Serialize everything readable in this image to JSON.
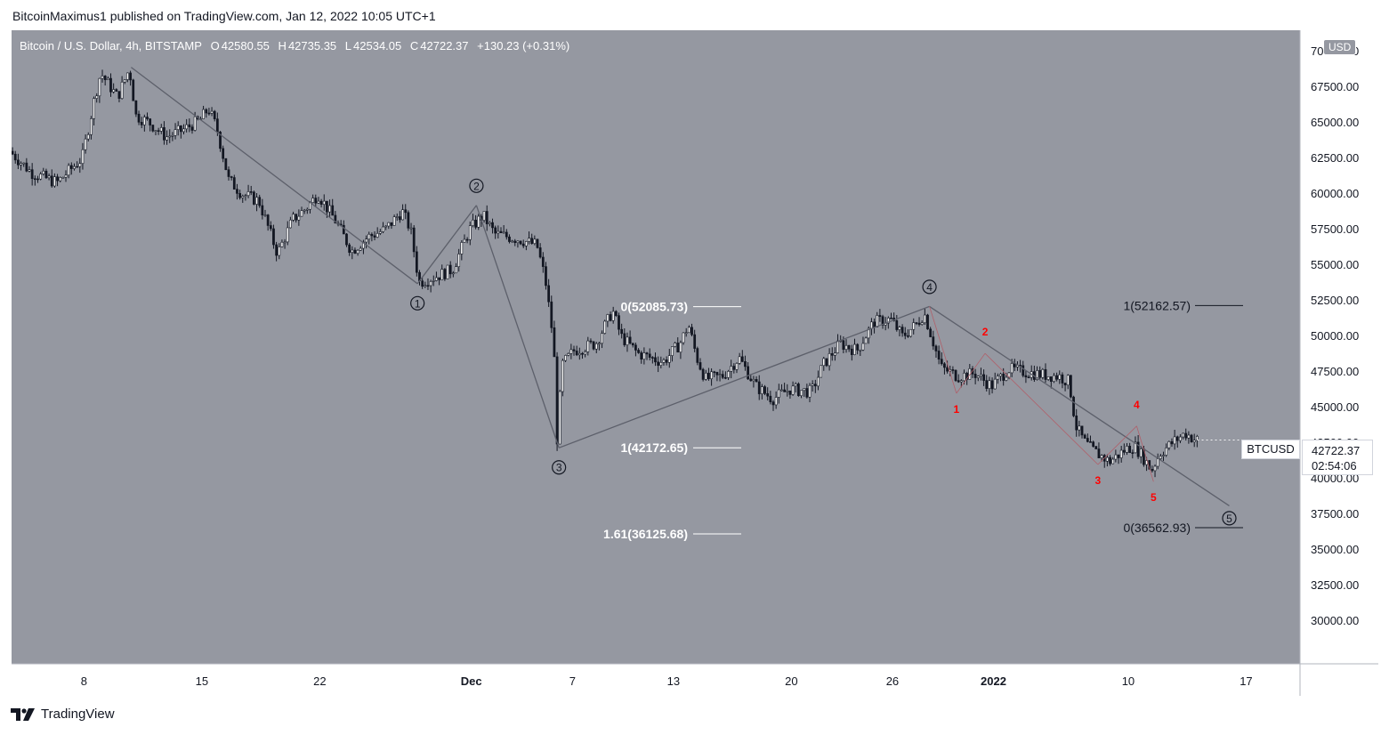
{
  "publisher_line": "BitcoinMaximus1 published on TradingView.com, Jan 12, 2022 10:05 UTC+1",
  "brand": {
    "name": "TradingView",
    "icon": "tradingview-logo-icon"
  },
  "legend": {
    "symbol": "Bitcoin / U.S. Dollar, 4h, BITSTAMP",
    "o_label": "O",
    "o_value": "42580.55",
    "h_label": "H",
    "h_value": "42735.35",
    "l_label": "L",
    "l_value": "42534.05",
    "c_label": "C",
    "c_value": "42722.37",
    "change": "+130.23 (+0.31%)"
  },
  "currency_badge": "USD",
  "price_tag": {
    "symbol": "BTCUSD",
    "price": "42722.37",
    "countdown": "02:54:06"
  },
  "colors": {
    "plot_bg": "#9598a1",
    "candle": "#131722",
    "trendline": "#5d606b",
    "wave_label_red": "#ff0000",
    "fib_line": "#ffffff"
  },
  "chart_data": {
    "type": "candlestick",
    "timeframe": "4h",
    "y_axis": {
      "ticks": [
        "30000.00",
        "32500.00",
        "35000.00",
        "37500.00",
        "40000.00",
        "42500.00",
        "45000.00",
        "47500.00",
        "50000.00",
        "52500.00",
        "55000.00",
        "57500.00",
        "60000.00",
        "62500.00",
        "65000.00",
        "67500.00",
        "70000.00"
      ],
      "range": [
        27000,
        71500
      ]
    },
    "x_axis": {
      "ticks": [
        {
          "label": "8",
          "day": 0
        },
        {
          "label": "15",
          "day": 7
        },
        {
          "label": "22",
          "day": 14
        },
        {
          "label": "Dec",
          "day": 23
        },
        {
          "label": "7",
          "day": 29
        },
        {
          "label": "13",
          "day": 35
        },
        {
          "label": "20",
          "day": 42
        },
        {
          "label": "26",
          "day": 48
        },
        {
          "label": "2022",
          "day": 54
        },
        {
          "label": "10",
          "day": 62
        },
        {
          "label": "17",
          "day": 69
        }
      ],
      "range": [
        -4.3,
        72.2
      ]
    },
    "price_path": [
      [
        -4.3,
        63000
      ],
      [
        -3,
        61500
      ],
      [
        -1.5,
        60800
      ],
      [
        0,
        62500
      ],
      [
        0.7,
        66500
      ],
      [
        1.1,
        68500
      ],
      [
        2.1,
        66800
      ],
      [
        2.8,
        68800
      ],
      [
        3.2,
        65500
      ],
      [
        4,
        65000
      ],
      [
        5,
        64000
      ],
      [
        6,
        64500
      ],
      [
        7,
        65200
      ],
      [
        7.5,
        66000
      ],
      [
        8,
        64600
      ],
      [
        8.7,
        61000
      ],
      [
        9.5,
        60000
      ],
      [
        10.5,
        59500
      ],
      [
        11.6,
        55800
      ],
      [
        12.5,
        58200
      ],
      [
        13.3,
        59000
      ],
      [
        14,
        60000
      ],
      [
        15,
        58200
      ],
      [
        16,
        56000
      ],
      [
        17,
        57000
      ],
      [
        18,
        57500
      ],
      [
        19,
        58800
      ],
      [
        19.5,
        57500
      ],
      [
        20,
        53800
      ],
      [
        21,
        54200
      ],
      [
        22,
        54700
      ],
      [
        23,
        57500
      ],
      [
        23.8,
        58500
      ],
      [
        24.5,
        57200
      ],
      [
        26,
        56800
      ],
      [
        27,
        56400
      ],
      [
        27.5,
        54000
      ],
      [
        28,
        49500
      ],
      [
        28.2,
        42800
      ],
      [
        28.5,
        48000
      ],
      [
        29.2,
        49000
      ],
      [
        30.5,
        49500
      ],
      [
        31.5,
        51800
      ],
      [
        32,
        50000
      ],
      [
        33,
        48800
      ],
      [
        34.5,
        48200
      ],
      [
        35.5,
        49500
      ],
      [
        36,
        50800
      ],
      [
        36.5,
        48500
      ],
      [
        37,
        47000
      ],
      [
        38,
        47200
      ],
      [
        39,
        48500
      ],
      [
        40,
        46500
      ],
      [
        41,
        45600
      ],
      [
        42,
        46300
      ],
      [
        43.3,
        46100
      ],
      [
        44,
        48000
      ],
      [
        45,
        49500
      ],
      [
        46,
        49000
      ],
      [
        47,
        51000
      ],
      [
        48,
        51200
      ],
      [
        48.7,
        50000
      ],
      [
        49.5,
        50800
      ],
      [
        50,
        51600
      ],
      [
        50.3,
        50500
      ],
      [
        51,
        47800
      ],
      [
        52,
        47200
      ],
      [
        53,
        47400
      ],
      [
        54,
        46500
      ],
      [
        55,
        47700
      ],
      [
        56,
        47500
      ],
      [
        57,
        47300
      ],
      [
        58,
        47200
      ],
      [
        58.6,
        46800
      ],
      [
        59,
        43700
      ],
      [
        59.5,
        42600
      ],
      [
        60,
        42000
      ],
      [
        61,
        41200
      ],
      [
        62,
        42100
      ],
      [
        62.5,
        42300
      ],
      [
        63,
        41500
      ],
      [
        63.5,
        40600
      ],
      [
        64,
        41800
      ],
      [
        64.8,
        42600
      ],
      [
        65.5,
        43200
      ],
      [
        66.1,
        42722.37
      ]
    ],
    "elliott_waves": [
      {
        "label": "1",
        "day": 19.8,
        "price": 53700
      },
      {
        "label": "2",
        "day": 23.3,
        "price": 59200
      },
      {
        "label": "3",
        "day": 28.2,
        "price": 42172
      },
      {
        "label": "4",
        "day": 50.2,
        "price": 52100
      },
      {
        "label": "5",
        "day": 68.0,
        "price": 38100
      }
    ],
    "subwaves": [
      {
        "label": "1",
        "day": 51.8,
        "price": 46000
      },
      {
        "label": "2",
        "day": 53.5,
        "price": 48800
      },
      {
        "label": "3",
        "day": 60.2,
        "price": 41000
      },
      {
        "label": "4",
        "day": 62.5,
        "price": 43700
      },
      {
        "label": "5",
        "day": 63.5,
        "price": 39800
      }
    ],
    "fib_levels_left": [
      {
        "label": "0(52085.73)",
        "price": 52085.73
      },
      {
        "label": "1(42172.65)",
        "price": 42172.65
      },
      {
        "label": "1.61(36125.68)",
        "price": 36125.68
      }
    ],
    "fib_levels_right": [
      {
        "label": "1(52162.57)",
        "price": 52162.57
      },
      {
        "label": "0(36562.93)",
        "price": 36562.93
      }
    ],
    "grid": false
  }
}
